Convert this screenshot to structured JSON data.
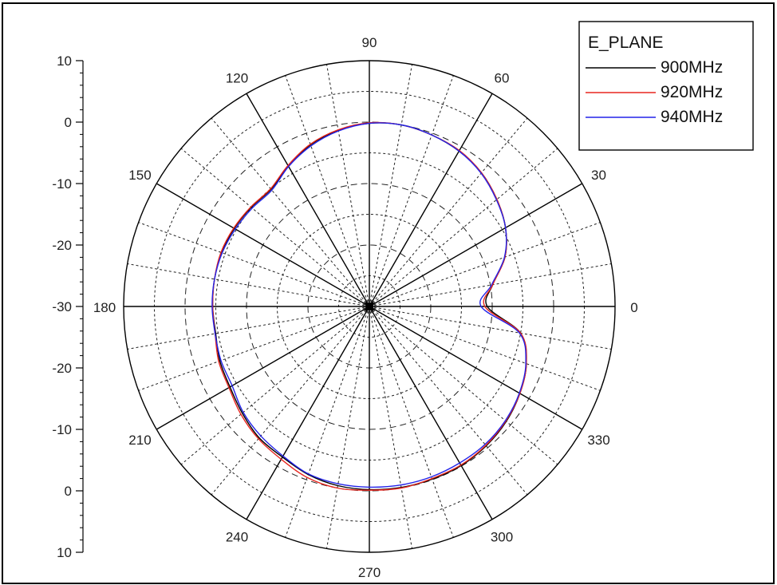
{
  "chart_data": {
    "type": "polar",
    "legend": {
      "title": "E_PLANE",
      "placement": "top-right"
    },
    "angle_ticks": [
      "0",
      "30",
      "60",
      "90",
      "120",
      "150",
      "180",
      "210",
      "240",
      "270",
      "300",
      "330"
    ],
    "radial_axis_ticks": [
      "10",
      "0",
      "-10",
      "-20",
      "-30",
      "-20",
      "-10",
      "0",
      "10"
    ],
    "radial_range": [
      -30,
      10
    ],
    "grid": true,
    "series_angles_deg": [
      0,
      10,
      20,
      30,
      40,
      50,
      60,
      70,
      80,
      90,
      100,
      110,
      120,
      130,
      140,
      150,
      160,
      170,
      180,
      190,
      200,
      210,
      220,
      230,
      240,
      250,
      260,
      270,
      280,
      290,
      300,
      310,
      320,
      330,
      340,
      350
    ],
    "series": [
      {
        "name": "900MHz",
        "color": "#000000",
        "values": [
          -10.8,
          -9.6,
          -6.5,
          -4.4,
          -2.9,
          -1.6,
          -0.8,
          -0.3,
          0.0,
          -0.2,
          -0.9,
          -2.0,
          -3.6,
          -5.1,
          -4.9,
          -4.6,
          -4.4,
          -4.4,
          -4.5,
          -4.6,
          -4.1,
          -3.8,
          -3.0,
          -2.1,
          -1.7,
          -0.9,
          -0.4,
          -0.2,
          -0.1,
          -0.1,
          -0.1,
          -0.4,
          -0.9,
          -1.7,
          -2.8,
          -5.0
        ]
      },
      {
        "name": "920MHz",
        "color": "#e8261f",
        "values": [
          -11.2,
          -9.6,
          -6.5,
          -4.4,
          -2.9,
          -1.6,
          -0.7,
          -0.3,
          0.0,
          -0.1,
          -0.8,
          -1.9,
          -3.5,
          -5.0,
          -4.8,
          -4.5,
          -4.3,
          -4.4,
          -4.5,
          -4.5,
          -3.9,
          -3.6,
          -2.7,
          -1.9,
          -1.3,
          -0.4,
          0.0,
          -0.1,
          0.0,
          -0.2,
          -0.2,
          -0.5,
          -1.0,
          -1.7,
          -2.8,
          -5.0
        ]
      },
      {
        "name": "940MHz",
        "color": "#2424e8",
        "values": [
          -11.8,
          -9.8,
          -6.6,
          -4.4,
          -3.0,
          -1.7,
          -0.8,
          -0.3,
          0.0,
          -0.2,
          -1.0,
          -2.2,
          -3.7,
          -5.3,
          -5.1,
          -4.8,
          -4.5,
          -4.4,
          -4.4,
          -4.5,
          -4.3,
          -4.2,
          -3.2,
          -2.5,
          -1.9,
          -1.0,
          -0.7,
          -0.6,
          -0.5,
          -0.5,
          -0.6,
          -0.7,
          -1.1,
          -1.8,
          -2.9,
          -5.2
        ]
      }
    ]
  }
}
